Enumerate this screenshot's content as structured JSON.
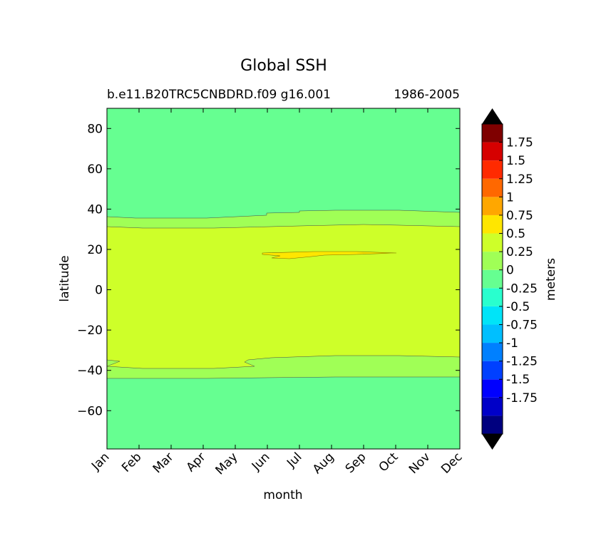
{
  "chart_data": {
    "type": "filled-contour",
    "title": "Global SSH",
    "subtitle_left": "b.e11.B20TRC5CNBDRD.f09 g16.001",
    "subtitle_right": "1986-2005",
    "xlabel": "month",
    "ylabel": "latitude",
    "x_ticks": [
      "Jan",
      "Feb",
      "Mar",
      "Apr",
      "May",
      "Jun",
      "Jul",
      "Aug",
      "Sep",
      "Oct",
      "Nov",
      "Dec"
    ],
    "y_ticks": [
      80,
      60,
      40,
      20,
      0,
      -20,
      -40,
      -60
    ],
    "y_tick_labels": [
      "80",
      "60",
      "40",
      "20",
      "0",
      "−20",
      "−40",
      "−60"
    ],
    "ylim": [
      -79,
      90
    ],
    "colorbar": {
      "label": "meters",
      "extend": "both",
      "levels": [
        -2,
        -1.75,
        -1.5,
        -1.25,
        -1,
        -0.75,
        -0.5,
        -0.25,
        0,
        0.25,
        0.5,
        0.75,
        1,
        1.25,
        1.5,
        1.75,
        2
      ],
      "tick_labels": [
        "1.75",
        "1.5",
        "1.25",
        "1",
        "0.75",
        "0.5",
        "0.25",
        "0",
        "-0.25",
        "-0.5",
        "-0.75",
        "-1",
        "-1.25",
        "-1.5",
        "-1.75"
      ],
      "colors": [
        "#00007f",
        "#0000c8",
        "#0000ff",
        "#0040ff",
        "#0080ff",
        "#00bfff",
        "#00e4f8",
        "#29ffce",
        "#66ff91",
        "#a0ff56",
        "#ceff29",
        "#ffe600",
        "#ffa700",
        "#ff6800",
        "#ff2a00",
        "#d60000",
        "#7f0000"
      ],
      "under_color": "#000000",
      "over_color": "#000000"
    },
    "regions": [
      {
        "level_range": [
          -0.25,
          0
        ],
        "lat_range": [
          -79,
          90
        ],
        "months": "all",
        "note": "background band"
      },
      {
        "level_range": [
          0,
          0.25
        ],
        "lat_range_approx": [
          -44,
          39
        ],
        "months": "all"
      },
      {
        "level_range": [
          0.25,
          0.5
        ],
        "lat_range_approx": [
          -39,
          32
        ],
        "months": "all"
      },
      {
        "level_range": [
          0.5,
          0.75
        ],
        "lat_range_approx": [
          16,
          19
        ],
        "months_approx": [
          "Jun",
          "Oct"
        ]
      }
    ]
  }
}
